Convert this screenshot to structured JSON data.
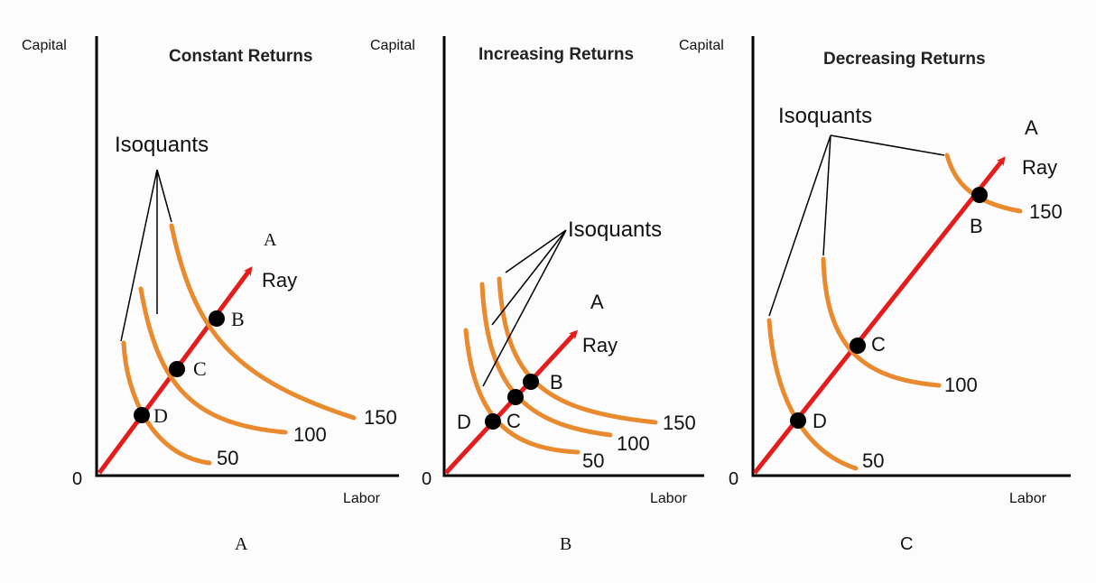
{
  "panels": [
    {
      "id": "A",
      "title": "Constant Returns",
      "y_axis_label": "Capital",
      "x_axis_label": "Labor",
      "origin_label": "0",
      "panel_label": "A",
      "isoquant_label": "Isoquants",
      "ray_label": "Ray",
      "ray_end_label": "A",
      "isoquant_values": [
        "50",
        "100",
        "150"
      ],
      "point_labels": [
        "D",
        "C",
        "B"
      ]
    },
    {
      "id": "B",
      "title": "Increasing Returns",
      "y_axis_label": "Capital",
      "x_axis_label": "Labor",
      "origin_label": "0",
      "panel_label": "B",
      "isoquant_label": "Isoquants",
      "ray_label": "Ray",
      "ray_end_label": "A",
      "isoquant_values": [
        "50",
        "100",
        "150"
      ],
      "point_labels": [
        "D",
        "C",
        "B"
      ]
    },
    {
      "id": "C",
      "title": "Decreasing Returns",
      "y_axis_label": "Capital",
      "x_axis_label": "Labor",
      "origin_label": "0",
      "panel_label": "C",
      "isoquant_label": "Isoquants",
      "ray_label": "Ray",
      "ray_end_label": "A",
      "isoquant_values": [
        "50",
        "100",
        "150"
      ],
      "point_labels": [
        "D",
        "C",
        "B"
      ]
    }
  ],
  "colors": {
    "isoquant": "#e98a2f",
    "ray": "#e41c1c",
    "axis": "#000000",
    "point": "#000000"
  }
}
